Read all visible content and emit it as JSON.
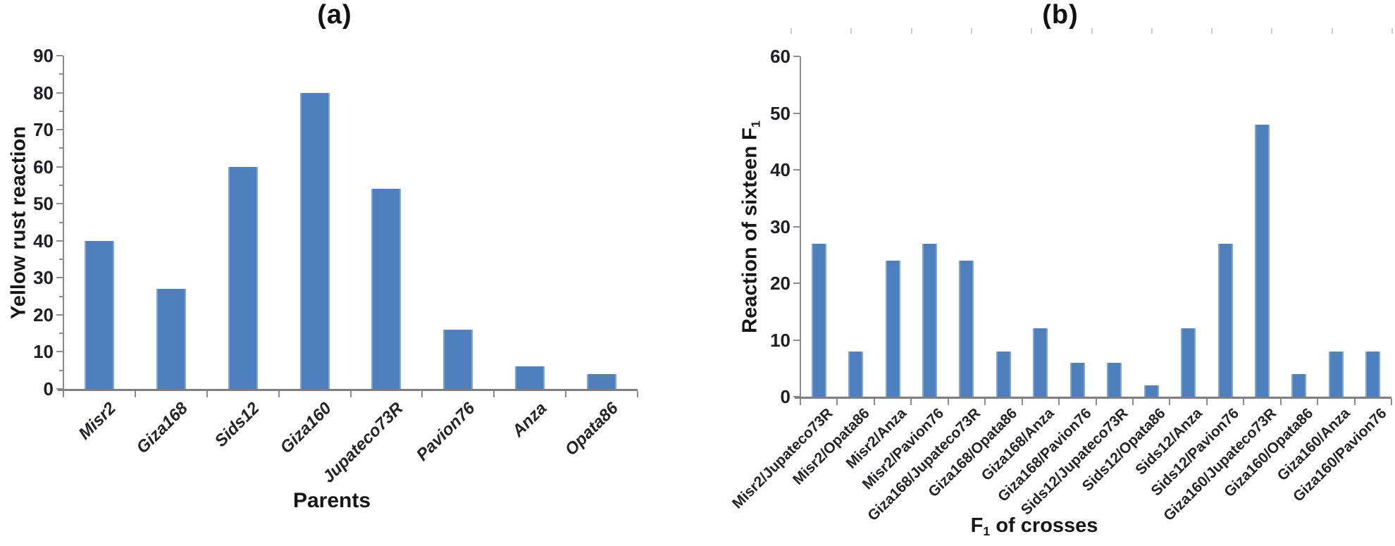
{
  "figure": {
    "background": "#ffffff",
    "colors": {
      "bar_fill": "#4d80bd",
      "bar_edge": "#81a6d4",
      "axis_line": "#7f7f7f",
      "tick_line": "#8c8c8c",
      "faint_top_tick": "#cbcbcb",
      "text": "#1e1e24"
    }
  },
  "chart_data": [
    {
      "type": "bar",
      "panel_label": "(a)",
      "ylabel_parts": [
        {
          "text": "Yellow rust reaction",
          "sub": false
        }
      ],
      "xlabel_parts": [
        {
          "text": "Parents",
          "sub": false
        }
      ],
      "categories": [
        "Misr2",
        "Giza168",
        "Sids12",
        "Giza160",
        "Jupateco73R",
        "Pavion76",
        "Anza",
        "Opata86"
      ],
      "values": [
        40,
        27,
        60,
        80,
        54,
        16,
        6,
        4
      ],
      "ylim": [
        0,
        90
      ],
      "yticks": [
        0,
        10,
        20,
        30,
        40,
        50,
        60,
        70,
        80,
        90
      ],
      "minor_tick_step": 5,
      "grid": false,
      "legend": false,
      "category_text_style": "italic"
    },
    {
      "type": "bar",
      "panel_label": "(b)",
      "ylabel_parts": [
        {
          "text": "Reaction of sixteen F",
          "sub": false
        },
        {
          "text": "1",
          "sub": true
        }
      ],
      "xlabel_parts": [
        {
          "text": "F",
          "sub": false
        },
        {
          "text": "1",
          "sub": true
        },
        {
          "text": " of crosses",
          "sub": false
        }
      ],
      "categories": [
        "Misr2/Jupateco73R",
        "Misr2/Opata86",
        "Misr2/Anza",
        "Misr2/Pavion76",
        "Giza168/Jupateco73R",
        "Giza168/Opata86",
        "Giza168/Anza",
        "Giza168/Pavion76",
        "Sids12/Jupateco73R",
        "Sids12/Opata86",
        "Sids12/Anza",
        "Sids12/Pavion76",
        "Giza160/Jupateco73R",
        "Giza160/Opata86",
        "Giza160/Anza",
        "Giza160/Pavion76"
      ],
      "values": [
        27,
        8,
        24,
        27,
        24,
        8,
        12,
        6,
        6,
        2,
        12,
        27,
        48,
        4,
        8,
        8
      ],
      "ylim": [
        0,
        60
      ],
      "yticks": [
        0,
        10,
        20,
        30,
        40,
        50,
        60
      ],
      "minor_tick_step": 0,
      "grid": false,
      "legend": false,
      "category_text_style": "normal"
    }
  ]
}
